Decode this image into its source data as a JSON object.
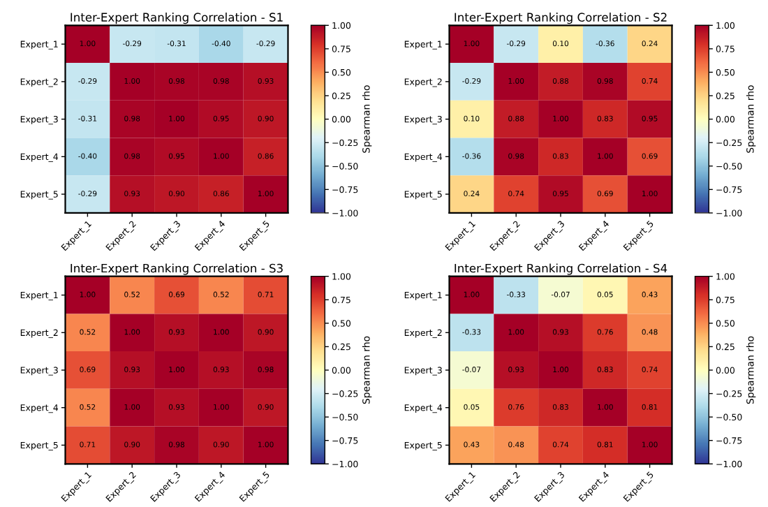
{
  "chart_data": [
    {
      "type": "heatmap",
      "title": "Inter-Expert Ranking Correlation - S1",
      "clabel": "Spearman rho",
      "categories": [
        "Expert_1",
        "Expert_2",
        "Expert_3",
        "Expert_4",
        "Expert_5"
      ],
      "y_categories": [
        "Expert_1",
        "Expert_2",
        "Expert_3",
        "Expert_4",
        "Expert_5"
      ],
      "cells": [
        [
          1.0,
          -0.29,
          -0.31,
          -0.4,
          -0.29
        ],
        [
          -0.29,
          1.0,
          0.98,
          0.98,
          0.93
        ],
        [
          -0.31,
          0.98,
          1.0,
          0.95,
          0.9
        ],
        [
          -0.4,
          0.98,
          0.95,
          1.0,
          0.86
        ],
        [
          -0.29,
          0.93,
          0.9,
          0.86,
          1.0
        ]
      ],
      "cell_labels": [
        [
          "1.00",
          "-0.29",
          "-0.31",
          "-0.40",
          "-0.29"
        ],
        [
          "-0.29",
          "1.00",
          "0.98",
          "0.98",
          "0.93"
        ],
        [
          "-0.31",
          "0.98",
          "1.00",
          "0.95",
          "0.90"
        ],
        [
          "-0.40",
          "0.98",
          "0.95",
          "1.00",
          "0.86"
        ],
        [
          "-0.29",
          "0.93",
          "0.90",
          "0.86",
          "1.00"
        ]
      ],
      "data_labels": true,
      "clim": [
        -1,
        1
      ],
      "cticks": [
        {
          "value": -1,
          "label": "−1.00"
        },
        {
          "value": -0.75,
          "label": "−0.75"
        },
        {
          "value": -0.5,
          "label": "−0.50"
        },
        {
          "value": -0.25,
          "label": "−0.25"
        },
        {
          "value": 0,
          "label": "0.00"
        },
        {
          "value": 0.25,
          "label": "0.25"
        },
        {
          "value": 0.5,
          "label": "0.50"
        },
        {
          "value": 0.75,
          "label": "0.75"
        },
        {
          "value": 1,
          "label": "1.00"
        }
      ]
    },
    {
      "type": "heatmap",
      "title": "Inter-Expert Ranking Correlation - S2",
      "clabel": "Spearman rho",
      "categories": [
        "Expert_1",
        "Expert_2",
        "Expert_3",
        "Expert_4",
        "Expert_5"
      ],
      "y_categories": [
        "Expert_1",
        "Expert_2",
        "Expert_3",
        "Expert_4",
        "Expert_5"
      ],
      "cells": [
        [
          1.0,
          -0.29,
          0.1,
          -0.36,
          0.24
        ],
        [
          -0.29,
          1.0,
          0.88,
          0.98,
          0.74
        ],
        [
          0.1,
          0.88,
          1.0,
          0.83,
          0.95
        ],
        [
          -0.36,
          0.98,
          0.83,
          1.0,
          0.69
        ],
        [
          0.24,
          0.74,
          0.95,
          0.69,
          1.0
        ]
      ],
      "cell_labels": [
        [
          "1.00",
          "-0.29",
          "0.10",
          "-0.36",
          "0.24"
        ],
        [
          "-0.29",
          "1.00",
          "0.88",
          "0.98",
          "0.74"
        ],
        [
          "0.10",
          "0.88",
          "1.00",
          "0.83",
          "0.95"
        ],
        [
          "-0.36",
          "0.98",
          "0.83",
          "1.00",
          "0.69"
        ],
        [
          "0.24",
          "0.74",
          "0.95",
          "0.69",
          "1.00"
        ]
      ],
      "data_labels": true,
      "clim": [
        -1,
        1
      ],
      "cticks": [
        {
          "value": -1,
          "label": "−1.00"
        },
        {
          "value": -0.75,
          "label": "−0.75"
        },
        {
          "value": -0.5,
          "label": "−0.50"
        },
        {
          "value": -0.25,
          "label": "−0.25"
        },
        {
          "value": 0,
          "label": "0.00"
        },
        {
          "value": 0.25,
          "label": "0.25"
        },
        {
          "value": 0.5,
          "label": "0.50"
        },
        {
          "value": 0.75,
          "label": "0.75"
        },
        {
          "value": 1,
          "label": "1.00"
        }
      ]
    },
    {
      "type": "heatmap",
      "title": "Inter-Expert Ranking Correlation - S3",
      "clabel": "Spearman rho",
      "categories": [
        "Expert_1",
        "Expert_2",
        "Expert_3",
        "Expert_4",
        "Expert_5"
      ],
      "y_categories": [
        "Expert_1",
        "Expert_2",
        "Expert_3",
        "Expert_4",
        "Expert_5"
      ],
      "cells": [
        [
          1.0,
          0.52,
          0.69,
          0.52,
          0.71
        ],
        [
          0.52,
          1.0,
          0.93,
          1.0,
          0.9
        ],
        [
          0.69,
          0.93,
          1.0,
          0.93,
          0.98
        ],
        [
          0.52,
          1.0,
          0.93,
          1.0,
          0.9
        ],
        [
          0.71,
          0.9,
          0.98,
          0.9,
          1.0
        ]
      ],
      "cell_labels": [
        [
          "1.00",
          "0.52",
          "0.69",
          "0.52",
          "0.71"
        ],
        [
          "0.52",
          "1.00",
          "0.93",
          "1.00",
          "0.90"
        ],
        [
          "0.69",
          "0.93",
          "1.00",
          "0.93",
          "0.98"
        ],
        [
          "0.52",
          "1.00",
          "0.93",
          "1.00",
          "0.90"
        ],
        [
          "0.71",
          "0.90",
          "0.98",
          "0.90",
          "1.00"
        ]
      ],
      "data_labels": true,
      "clim": [
        -1,
        1
      ],
      "cticks": [
        {
          "value": -1,
          "label": "−1.00"
        },
        {
          "value": -0.75,
          "label": "−0.75"
        },
        {
          "value": -0.5,
          "label": "−0.50"
        },
        {
          "value": -0.25,
          "label": "−0.25"
        },
        {
          "value": 0,
          "label": "0.00"
        },
        {
          "value": 0.25,
          "label": "0.25"
        },
        {
          "value": 0.5,
          "label": "0.50"
        },
        {
          "value": 0.75,
          "label": "0.75"
        },
        {
          "value": 1,
          "label": "1.00"
        }
      ]
    },
    {
      "type": "heatmap",
      "title": "Inter-Expert Ranking Correlation - S4",
      "clabel": "Spearman rho",
      "categories": [
        "Expert_1",
        "Expert_2",
        "Expert_3",
        "Expert_4",
        "Expert_5"
      ],
      "y_categories": [
        "Expert_1",
        "Expert_2",
        "Expert_3",
        "Expert_4",
        "Expert_5"
      ],
      "cells": [
        [
          1.0,
          -0.33,
          -0.07,
          0.05,
          0.43
        ],
        [
          -0.33,
          1.0,
          0.93,
          0.76,
          0.48
        ],
        [
          -0.07,
          0.93,
          1.0,
          0.83,
          0.74
        ],
        [
          0.05,
          0.76,
          0.83,
          1.0,
          0.81
        ],
        [
          0.43,
          0.48,
          0.74,
          0.81,
          1.0
        ]
      ],
      "cell_labels": [
        [
          "1.00",
          "-0.33",
          "-0.07",
          "0.05",
          "0.43"
        ],
        [
          "-0.33",
          "1.00",
          "0.93",
          "0.76",
          "0.48"
        ],
        [
          "-0.07",
          "0.93",
          "1.00",
          "0.83",
          "0.74"
        ],
        [
          "0.05",
          "0.76",
          "0.83",
          "1.00",
          "0.81"
        ],
        [
          "0.43",
          "0.48",
          "0.74",
          "0.81",
          "1.00"
        ]
      ],
      "data_labels": true,
      "clim": [
        -1,
        1
      ],
      "cticks": [
        {
          "value": -1,
          "label": "−1.00"
        },
        {
          "value": -0.75,
          "label": "−0.75"
        },
        {
          "value": -0.5,
          "label": "−0.50"
        },
        {
          "value": -0.25,
          "label": "−0.25"
        },
        {
          "value": 0,
          "label": "0.00"
        },
        {
          "value": 0.25,
          "label": "0.25"
        },
        {
          "value": 0.5,
          "label": "0.50"
        },
        {
          "value": 0.75,
          "label": "0.75"
        },
        {
          "value": 1,
          "label": "1.00"
        }
      ]
    }
  ]
}
